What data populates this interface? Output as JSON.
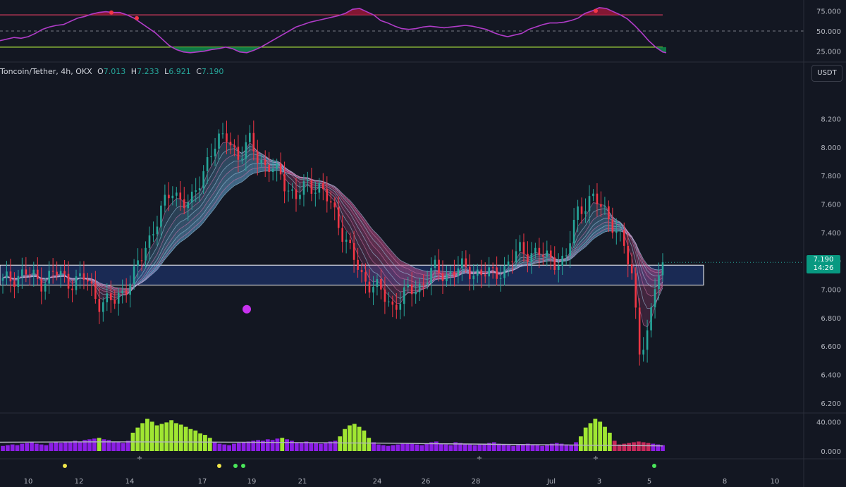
{
  "symbol": {
    "name": "Toncoin/Tether, 4h, OKX",
    "o_label": "O",
    "o": "7.013",
    "h_label": "H",
    "h": "7.233",
    "l_label": "L",
    "l": "6.921",
    "c_label": "C",
    "c": "7.190"
  },
  "unit_button": "USDT",
  "price_badge": {
    "price": "7.190",
    "countdown": "14:26"
  },
  "colors": {
    "background": "#131722",
    "up": "#26a69a",
    "down": "#f23645",
    "ribbon_bull": "#6ab0e0",
    "ribbon_bear": "#c0508c",
    "zone_fill": "#1e3266",
    "oscillator_line": "#b03cc8",
    "overbought_line": "#d03a5c",
    "oversold_line": "#a8e03c",
    "volume_bull": "#a0e632",
    "volume_bear": "#8c1ee6",
    "volume_ma": "#b2b5be",
    "signal_dot": "#c832f0"
  },
  "chart_data": [
    {
      "type": "line",
      "name": "oscillator",
      "y_ticks": [
        "75.000",
        "50.000",
        "25.000"
      ],
      "ylim": [
        15,
        85
      ],
      "levels": [
        70,
        50,
        30
      ],
      "x": [
        0,
        10,
        20,
        30,
        40,
        50,
        60,
        70,
        80,
        90,
        100,
        110,
        120,
        130,
        140,
        150,
        160,
        170,
        180,
        190,
        200,
        210,
        220,
        230,
        240,
        250,
        260,
        270,
        280,
        290,
        300,
        310,
        320,
        330,
        340,
        350,
        360,
        370,
        380,
        390,
        400,
        410,
        420,
        430,
        440,
        450,
        460,
        470,
        480,
        490,
        500,
        510,
        520,
        530,
        540,
        550,
        560,
        570,
        580,
        590,
        600,
        610,
        620,
        630,
        640,
        650,
        660,
        670,
        680,
        690,
        700,
        710,
        720,
        730,
        740,
        750,
        760,
        770,
        780,
        790,
        800,
        810,
        820,
        830,
        840,
        850,
        860,
        870,
        880,
        890,
        900,
        910,
        920,
        930,
        940,
        945
      ],
      "values": [
        38,
        40,
        42,
        41,
        43,
        47,
        52,
        55,
        57,
        58,
        62,
        66,
        68,
        71,
        73,
        74,
        73,
        73,
        70,
        66,
        60,
        54,
        48,
        40,
        32,
        27,
        24,
        23,
        24,
        25,
        27,
        28,
        30,
        28,
        24,
        23,
        26,
        30,
        35,
        40,
        45,
        50,
        55,
        58,
        61,
        63,
        65,
        67,
        69,
        72,
        77,
        78,
        74,
        70,
        63,
        60,
        56,
        53,
        52,
        53,
        55,
        56,
        55,
        54,
        55,
        56,
        57,
        56,
        54,
        52,
        48,
        45,
        43,
        45,
        47,
        52,
        55,
        58,
        60,
        60,
        61,
        63,
        66,
        72,
        75,
        79,
        78,
        74,
        70,
        65,
        57,
        48,
        38,
        30,
        24,
        23
      ],
      "markers_at_x": [
        158,
        194,
        845
      ]
    },
    {
      "type": "candlestick",
      "name": "Toncoin/Tether, 4h, OKX",
      "y_ticks": [
        "8.200",
        "8.000",
        "7.800",
        "7.600",
        "7.400",
        "7.200",
        "7.000",
        "6.800",
        "6.600",
        "6.400",
        "6.200"
      ],
      "ylim": [
        6.15,
        8.45
      ],
      "x_ticks": [
        "10",
        "12",
        "14",
        "17",
        "19",
        "21",
        "24",
        "26",
        "28",
        "Jul",
        "3",
        "5",
        "8",
        "10"
      ],
      "candle_count": 172,
      "close_anchors": [
        [
          0,
          7.05
        ],
        [
          6,
          7.12
        ],
        [
          10,
          7.05
        ],
        [
          14,
          7.12
        ],
        [
          18,
          7.05
        ],
        [
          22,
          7.08
        ],
        [
          26,
          6.9
        ],
        [
          30,
          6.92
        ],
        [
          35,
          7.1
        ],
        [
          40,
          7.42
        ],
        [
          45,
          7.7
        ],
        [
          50,
          7.58
        ],
        [
          55,
          7.95
        ],
        [
          60,
          8.1
        ],
        [
          63,
          7.9
        ],
        [
          66,
          8.05
        ],
        [
          70,
          7.85
        ],
        [
          74,
          7.82
        ],
        [
          78,
          7.62
        ],
        [
          81,
          7.75
        ],
        [
          84,
          7.72
        ],
        [
          88,
          7.58
        ],
        [
          92,
          7.3
        ],
        [
          96,
          7.08
        ],
        [
          100,
          7.0
        ],
        [
          104,
          6.88
        ],
        [
          108,
          6.98
        ],
        [
          111,
          7.02
        ],
        [
          115,
          7.14
        ],
        [
          118,
          7.1
        ],
        [
          122,
          7.15
        ],
        [
          126,
          7.12
        ],
        [
          130,
          7.1
        ],
        [
          134,
          7.15
        ],
        [
          138,
          7.28
        ],
        [
          142,
          7.25
        ],
        [
          146,
          7.22
        ],
        [
          150,
          7.18
        ],
        [
          153,
          7.55
        ],
        [
          156,
          7.62
        ],
        [
          158,
          7.62
        ],
        [
          160,
          7.58
        ],
        [
          162,
          7.5
        ],
        [
          164,
          7.38
        ],
        [
          166,
          7.28
        ],
        [
          168,
          7.08
        ],
        [
          170,
          6.55
        ],
        [
          172,
          6.65
        ],
        [
          174,
          7.05
        ],
        [
          176,
          7.19
        ]
      ],
      "last_close": 7.19,
      "support_zone": [
        7.03,
        7.17
      ],
      "ribbon_bands": 8,
      "signal_marker_y": 6.86
    },
    {
      "type": "bar",
      "name": "volume",
      "y_ticks": [
        "40.000",
        "0.000"
      ],
      "ylim": [
        0,
        48
      ],
      "values": [
        7,
        8,
        9,
        8,
        10,
        11,
        12,
        10,
        9,
        8,
        11,
        12,
        11,
        13,
        12,
        14,
        13,
        15,
        16,
        17,
        18,
        16,
        15,
        13,
        12,
        11,
        14,
        25,
        32,
        38,
        44,
        40,
        35,
        37,
        39,
        42,
        38,
        36,
        33,
        30,
        28,
        24,
        22,
        18,
        12,
        10,
        9,
        8,
        10,
        11,
        12,
        13,
        14,
        15,
        14,
        16,
        15,
        17,
        18,
        16,
        14,
        12,
        11,
        13,
        12,
        11,
        10,
        12,
        13,
        14,
        20,
        30,
        35,
        37,
        33,
        28,
        18,
        12,
        9,
        8,
        7,
        8,
        9,
        10,
        11,
        10,
        9,
        8,
        10,
        12,
        13,
        10,
        9,
        8,
        12,
        11,
        10,
        9,
        8,
        9,
        10,
        11,
        12,
        10,
        9,
        8,
        7,
        8,
        9,
        10,
        9,
        8,
        7,
        9,
        10,
        11,
        10,
        9,
        8,
        12,
        20,
        32,
        38,
        44,
        40,
        33,
        25,
        14,
        9,
        10,
        11,
        12,
        13,
        12,
        11,
        10,
        9,
        8
      ],
      "ma_range": [
        12,
        7
      ],
      "signals": [
        {
          "x": 92,
          "color": "#f0e64a",
          "glyph": "●"
        },
        {
          "x": 198,
          "color": "#4ae65a",
          "glyph": "+"
        },
        {
          "x": 311,
          "color": "#f0e64a",
          "glyph": "●"
        },
        {
          "x": 334,
          "color": "#4ae65a",
          "glyph": "●"
        },
        {
          "x": 345,
          "color": "#4ae65a",
          "glyph": "●"
        },
        {
          "x": 680,
          "color": "#4ae65a",
          "glyph": "+"
        },
        {
          "x": 845,
          "color": "#4ae65a",
          "glyph": "+"
        },
        {
          "x": 928,
          "color": "#4ae65a",
          "glyph": "●"
        }
      ]
    }
  ]
}
